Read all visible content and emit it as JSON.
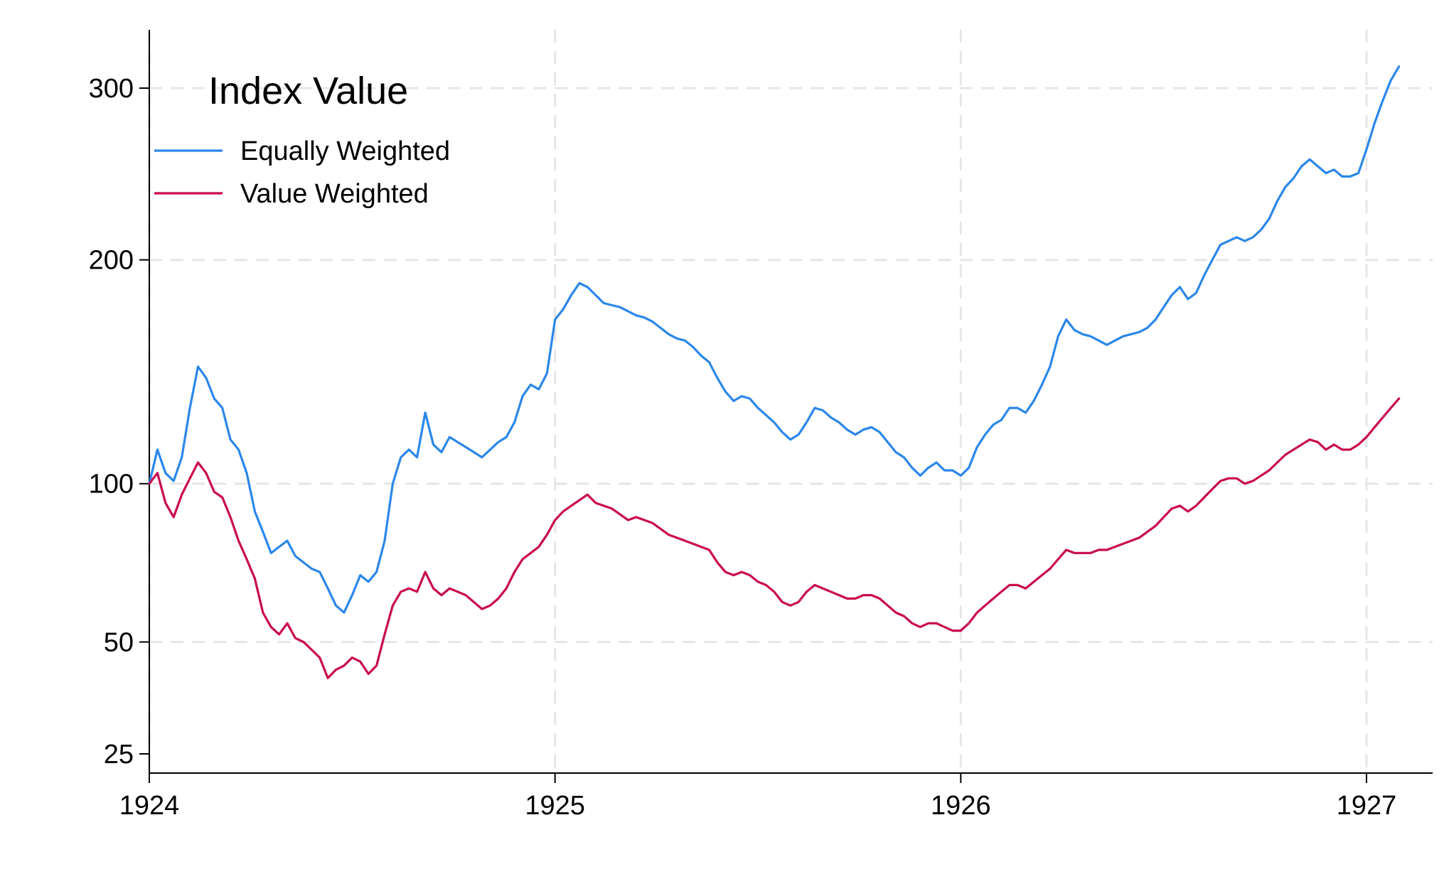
{
  "chart_data": {
    "type": "line",
    "title": "",
    "xlabel": "",
    "ylabel": "",
    "x_range": [
      1924.0,
      1927.1
    ],
    "y_scale": "sqrt",
    "ylim": [
      15,
      340
    ],
    "x_ticks": [
      1924,
      1925,
      1926,
      1927
    ],
    "y_ticks": [
      25,
      50,
      100,
      200,
      300
    ],
    "grid": true,
    "legend": {
      "title": "Index Value",
      "placement": "top-left"
    },
    "series": [
      {
        "name": "Equally Weighted",
        "color": "#2b87ea",
        "points": [
          [
            1924.0,
            100
          ],
          [
            1924.02,
            113
          ],
          [
            1924.04,
            104
          ],
          [
            1924.06,
            101
          ],
          [
            1924.08,
            110
          ],
          [
            1924.1,
            130
          ],
          [
            1924.12,
            148
          ],
          [
            1924.14,
            143
          ],
          [
            1924.16,
            134
          ],
          [
            1924.18,
            130
          ],
          [
            1924.2,
            117
          ],
          [
            1924.22,
            113
          ],
          [
            1924.24,
            104
          ],
          [
            1924.26,
            90
          ],
          [
            1924.28,
            83
          ],
          [
            1924.3,
            76
          ],
          [
            1924.32,
            78
          ],
          [
            1924.34,
            80
          ],
          [
            1924.36,
            75
          ],
          [
            1924.38,
            73
          ],
          [
            1924.4,
            71
          ],
          [
            1924.42,
            70
          ],
          [
            1924.44,
            65
          ],
          [
            1924.46,
            60
          ],
          [
            1924.48,
            58
          ],
          [
            1924.5,
            63
          ],
          [
            1924.52,
            69
          ],
          [
            1924.54,
            67
          ],
          [
            1924.56,
            70
          ],
          [
            1924.58,
            80
          ],
          [
            1924.6,
            100
          ],
          [
            1924.62,
            110
          ],
          [
            1924.64,
            113
          ],
          [
            1924.66,
            110
          ],
          [
            1924.68,
            128
          ],
          [
            1924.7,
            115
          ],
          [
            1924.72,
            112
          ],
          [
            1924.74,
            118
          ],
          [
            1924.76,
            116
          ],
          [
            1924.78,
            114
          ],
          [
            1924.8,
            112
          ],
          [
            1924.82,
            110
          ],
          [
            1924.84,
            113
          ],
          [
            1924.86,
            116
          ],
          [
            1924.88,
            118
          ],
          [
            1924.9,
            124
          ],
          [
            1924.92,
            135
          ],
          [
            1924.94,
            140
          ],
          [
            1924.96,
            138
          ],
          [
            1924.98,
            145
          ],
          [
            1925.0,
            170
          ],
          [
            1925.02,
            175
          ],
          [
            1925.04,
            182
          ],
          [
            1925.06,
            188
          ],
          [
            1925.08,
            186
          ],
          [
            1925.1,
            182
          ],
          [
            1925.12,
            178
          ],
          [
            1925.14,
            177
          ],
          [
            1925.16,
            176
          ],
          [
            1925.18,
            174
          ],
          [
            1925.2,
            172
          ],
          [
            1925.22,
            171
          ],
          [
            1925.24,
            169
          ],
          [
            1925.26,
            166
          ],
          [
            1925.28,
            163
          ],
          [
            1925.3,
            161
          ],
          [
            1925.32,
            160
          ],
          [
            1925.34,
            157
          ],
          [
            1925.36,
            153
          ],
          [
            1925.38,
            150
          ],
          [
            1925.4,
            143
          ],
          [
            1925.42,
            137
          ],
          [
            1925.44,
            133
          ],
          [
            1925.46,
            135
          ],
          [
            1925.48,
            134
          ],
          [
            1925.5,
            130
          ],
          [
            1925.52,
            127
          ],
          [
            1925.54,
            124
          ],
          [
            1925.56,
            120
          ],
          [
            1925.58,
            117
          ],
          [
            1925.6,
            119
          ],
          [
            1925.62,
            124
          ],
          [
            1925.64,
            130
          ],
          [
            1925.66,
            129
          ],
          [
            1925.68,
            126
          ],
          [
            1925.7,
            124
          ],
          [
            1925.72,
            121
          ],
          [
            1925.74,
            119
          ],
          [
            1925.76,
            121
          ],
          [
            1925.78,
            122
          ],
          [
            1925.8,
            120
          ],
          [
            1925.82,
            116
          ],
          [
            1925.84,
            112
          ],
          [
            1925.86,
            110
          ],
          [
            1925.88,
            106
          ],
          [
            1925.9,
            103
          ],
          [
            1925.92,
            106
          ],
          [
            1925.94,
            108
          ],
          [
            1925.96,
            105
          ],
          [
            1925.98,
            105
          ],
          [
            1926.0,
            103
          ],
          [
            1926.02,
            106
          ],
          [
            1926.04,
            114
          ],
          [
            1926.06,
            119
          ],
          [
            1926.08,
            123
          ],
          [
            1926.1,
            125
          ],
          [
            1926.12,
            130
          ],
          [
            1926.14,
            130
          ],
          [
            1926.16,
            128
          ],
          [
            1926.18,
            133
          ],
          [
            1926.2,
            140
          ],
          [
            1926.22,
            148
          ],
          [
            1926.24,
            162
          ],
          [
            1926.26,
            170
          ],
          [
            1926.28,
            165
          ],
          [
            1926.3,
            163
          ],
          [
            1926.32,
            162
          ],
          [
            1926.34,
            160
          ],
          [
            1926.36,
            158
          ],
          [
            1926.38,
            160
          ],
          [
            1926.4,
            162
          ],
          [
            1926.42,
            163
          ],
          [
            1926.44,
            164
          ],
          [
            1926.46,
            166
          ],
          [
            1926.48,
            170
          ],
          [
            1926.5,
            176
          ],
          [
            1926.52,
            182
          ],
          [
            1926.54,
            186
          ],
          [
            1926.56,
            180
          ],
          [
            1926.58,
            183
          ],
          [
            1926.6,
            192
          ],
          [
            1926.62,
            200
          ],
          [
            1926.64,
            208
          ],
          [
            1926.66,
            210
          ],
          [
            1926.68,
            212
          ],
          [
            1926.7,
            210
          ],
          [
            1926.72,
            212
          ],
          [
            1926.74,
            216
          ],
          [
            1926.76,
            222
          ],
          [
            1926.78,
            232
          ],
          [
            1926.8,
            240
          ],
          [
            1926.82,
            245
          ],
          [
            1926.84,
            252
          ],
          [
            1926.86,
            256
          ],
          [
            1926.88,
            252
          ],
          [
            1926.9,
            248
          ],
          [
            1926.92,
            250
          ],
          [
            1926.94,
            246
          ],
          [
            1926.96,
            246
          ],
          [
            1926.98,
            248
          ],
          [
            1927.0,
            262
          ],
          [
            1927.02,
            278
          ],
          [
            1927.04,
            292
          ],
          [
            1927.06,
            305
          ],
          [
            1927.08,
            314
          ]
        ]
      },
      {
        "name": "Value Weighted",
        "color": "#c90a50",
        "points": [
          [
            1924.0,
            100
          ],
          [
            1924.02,
            104
          ],
          [
            1924.04,
            93
          ],
          [
            1924.06,
            88
          ],
          [
            1924.08,
            96
          ],
          [
            1924.1,
            102
          ],
          [
            1924.12,
            108
          ],
          [
            1924.14,
            104
          ],
          [
            1924.16,
            97
          ],
          [
            1924.18,
            95
          ],
          [
            1924.2,
            88
          ],
          [
            1924.22,
            80
          ],
          [
            1924.24,
            74
          ],
          [
            1924.26,
            68
          ],
          [
            1924.28,
            58
          ],
          [
            1924.3,
            54
          ],
          [
            1924.32,
            52
          ],
          [
            1924.34,
            55
          ],
          [
            1924.36,
            51
          ],
          [
            1924.38,
            50
          ],
          [
            1924.4,
            48
          ],
          [
            1924.42,
            46
          ],
          [
            1924.44,
            41
          ],
          [
            1924.46,
            43
          ],
          [
            1924.48,
            44
          ],
          [
            1924.5,
            46
          ],
          [
            1924.52,
            45
          ],
          [
            1924.54,
            42
          ],
          [
            1924.56,
            44
          ],
          [
            1924.58,
            52
          ],
          [
            1924.6,
            60
          ],
          [
            1924.62,
            64
          ],
          [
            1924.64,
            65
          ],
          [
            1924.66,
            64
          ],
          [
            1924.68,
            70
          ],
          [
            1924.7,
            65
          ],
          [
            1924.72,
            63
          ],
          [
            1924.74,
            65
          ],
          [
            1924.76,
            64
          ],
          [
            1924.78,
            63
          ],
          [
            1924.8,
            61
          ],
          [
            1924.82,
            59
          ],
          [
            1924.84,
            60
          ],
          [
            1924.86,
            62
          ],
          [
            1924.88,
            65
          ],
          [
            1924.9,
            70
          ],
          [
            1924.92,
            74
          ],
          [
            1924.94,
            76
          ],
          [
            1924.96,
            78
          ],
          [
            1924.98,
            82
          ],
          [
            1925.0,
            87
          ],
          [
            1925.02,
            90
          ],
          [
            1925.04,
            92
          ],
          [
            1925.06,
            94
          ],
          [
            1925.08,
            96
          ],
          [
            1925.1,
            93
          ],
          [
            1925.12,
            92
          ],
          [
            1925.14,
            91
          ],
          [
            1925.16,
            89
          ],
          [
            1925.18,
            87
          ],
          [
            1925.2,
            88
          ],
          [
            1925.22,
            87
          ],
          [
            1925.24,
            86
          ],
          [
            1925.26,
            84
          ],
          [
            1925.28,
            82
          ],
          [
            1925.3,
            81
          ],
          [
            1925.32,
            80
          ],
          [
            1925.34,
            79
          ],
          [
            1925.36,
            78
          ],
          [
            1925.38,
            77
          ],
          [
            1925.4,
            73
          ],
          [
            1925.42,
            70
          ],
          [
            1925.44,
            69
          ],
          [
            1925.46,
            70
          ],
          [
            1925.48,
            69
          ],
          [
            1925.5,
            67
          ],
          [
            1925.52,
            66
          ],
          [
            1925.54,
            64
          ],
          [
            1925.56,
            61
          ],
          [
            1925.58,
            60
          ],
          [
            1925.6,
            61
          ],
          [
            1925.62,
            64
          ],
          [
            1925.64,
            66
          ],
          [
            1925.66,
            65
          ],
          [
            1925.68,
            64
          ],
          [
            1925.7,
            63
          ],
          [
            1925.72,
            62
          ],
          [
            1925.74,
            62
          ],
          [
            1925.76,
            63
          ],
          [
            1925.78,
            63
          ],
          [
            1925.8,
            62
          ],
          [
            1925.82,
            60
          ],
          [
            1925.84,
            58
          ],
          [
            1925.86,
            57
          ],
          [
            1925.88,
            55
          ],
          [
            1925.9,
            54
          ],
          [
            1925.92,
            55
          ],
          [
            1925.94,
            55
          ],
          [
            1925.96,
            54
          ],
          [
            1925.98,
            53
          ],
          [
            1926.0,
            53
          ],
          [
            1926.02,
            55
          ],
          [
            1926.04,
            58
          ],
          [
            1926.06,
            60
          ],
          [
            1926.08,
            62
          ],
          [
            1926.1,
            64
          ],
          [
            1926.12,
            66
          ],
          [
            1926.14,
            66
          ],
          [
            1926.16,
            65
          ],
          [
            1926.18,
            67
          ],
          [
            1926.2,
            69
          ],
          [
            1926.22,
            71
          ],
          [
            1926.24,
            74
          ],
          [
            1926.26,
            77
          ],
          [
            1926.28,
            76
          ],
          [
            1926.3,
            76
          ],
          [
            1926.32,
            76
          ],
          [
            1926.34,
            77
          ],
          [
            1926.36,
            77
          ],
          [
            1926.38,
            78
          ],
          [
            1926.4,
            79
          ],
          [
            1926.42,
            80
          ],
          [
            1926.44,
            81
          ],
          [
            1926.46,
            83
          ],
          [
            1926.48,
            85
          ],
          [
            1926.5,
            88
          ],
          [
            1926.52,
            91
          ],
          [
            1926.54,
            92
          ],
          [
            1926.56,
            90
          ],
          [
            1926.58,
            92
          ],
          [
            1926.6,
            95
          ],
          [
            1926.62,
            98
          ],
          [
            1926.64,
            101
          ],
          [
            1926.66,
            102
          ],
          [
            1926.68,
            102
          ],
          [
            1926.7,
            100
          ],
          [
            1926.72,
            101
          ],
          [
            1926.74,
            103
          ],
          [
            1926.76,
            105
          ],
          [
            1926.78,
            108
          ],
          [
            1926.8,
            111
          ],
          [
            1926.82,
            113
          ],
          [
            1926.84,
            115
          ],
          [
            1926.86,
            117
          ],
          [
            1926.88,
            116
          ],
          [
            1926.9,
            113
          ],
          [
            1926.92,
            115
          ],
          [
            1926.94,
            113
          ],
          [
            1926.96,
            113
          ],
          [
            1926.98,
            115
          ],
          [
            1927.0,
            118
          ],
          [
            1927.02,
            122
          ],
          [
            1927.04,
            126
          ],
          [
            1927.06,
            130
          ],
          [
            1927.08,
            134
          ]
        ]
      }
    ]
  }
}
